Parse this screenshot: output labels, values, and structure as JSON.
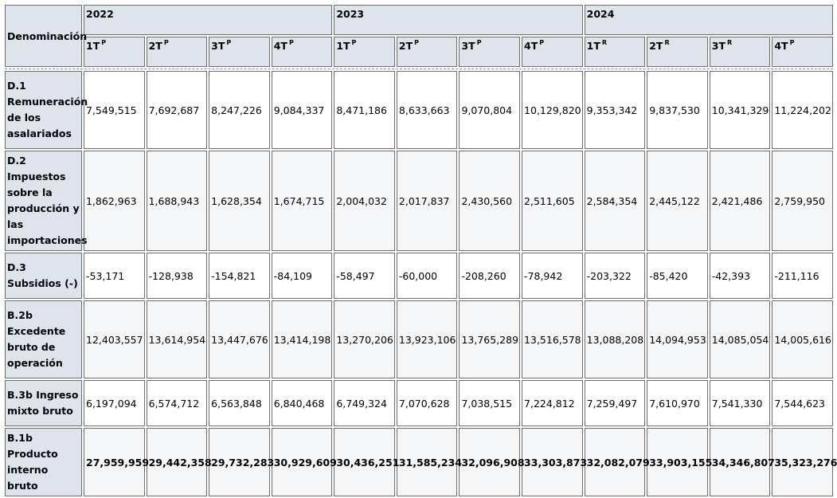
{
  "header": {
    "denomination_label": "Denominación",
    "years": [
      "2022",
      "2023",
      "2024"
    ],
    "quarters": [
      {
        "label": "1T",
        "flag": "P"
      },
      {
        "label": "2T",
        "flag": "P"
      },
      {
        "label": "3T",
        "flag": "P"
      },
      {
        "label": "4T",
        "flag": "P"
      },
      {
        "label": "1T",
        "flag": "P"
      },
      {
        "label": "2T",
        "flag": "P"
      },
      {
        "label": "3T",
        "flag": "P"
      },
      {
        "label": "4T",
        "flag": "P"
      },
      {
        "label": "1T",
        "flag": "R"
      },
      {
        "label": "2T",
        "flag": "R"
      },
      {
        "label": "3T",
        "flag": "R"
      },
      {
        "label": "4T",
        "flag": "P"
      }
    ]
  },
  "rows": [
    {
      "label": "D.1 Remuneración de los asalariados",
      "values": [
        "7,549,515",
        "7,692,687",
        "8,247,226",
        "9,084,337",
        "8,471,186",
        "8,633,663",
        "9,070,804",
        "10,129,820",
        "9,353,342",
        "9,837,530",
        "10,341,329",
        "11,224,202"
      ]
    },
    {
      "label": "D.2 Impuestos sobre la producción y las importaciones",
      "values": [
        "1,862,963",
        "1,688,943",
        "1,628,354",
        "1,674,715",
        "2,004,032",
        "2,017,837",
        "2,430,560",
        "2,511,605",
        "2,584,354",
        "2,445,122",
        "2,421,486",
        "2,759,950"
      ]
    },
    {
      "label": "D.3 Subsidios (-)",
      "values": [
        "-53,171",
        "-128,938",
        "-154,821",
        "-84,109",
        "-58,497",
        "-60,000",
        "-208,260",
        "-78,942",
        "-203,322",
        "-85,420",
        "-42,393",
        "-211,116"
      ]
    },
    {
      "label": "B.2b Excedente bruto de operación",
      "values": [
        "12,403,557",
        "13,614,954",
        "13,447,676",
        "13,414,198",
        "13,270,206",
        "13,923,106",
        "13,765,289",
        "13,516,578",
        "13,088,208",
        "14,094,953",
        "14,085,054",
        "14,005,616"
      ]
    },
    {
      "label": "B.3b Ingreso mixto bruto",
      "values": [
        "6,197,094",
        "6,574,712",
        "6,563,848",
        "6,840,468",
        "6,749,324",
        "7,070,628",
        "7,038,515",
        "7,224,812",
        "7,259,497",
        "7,610,970",
        "7,541,330",
        "7,544,623"
      ]
    },
    {
      "label": "B.1b Producto interno bruto",
      "values": [
        "27,959,959",
        "29,442,358",
        "29,732,283",
        "30,929,609",
        "30,436,251",
        "31,585,234",
        "32,096,908",
        "33,303,873",
        "32,082,079",
        "33,903,155",
        "34,346,807",
        "35,323,276"
      ]
    }
  ]
}
